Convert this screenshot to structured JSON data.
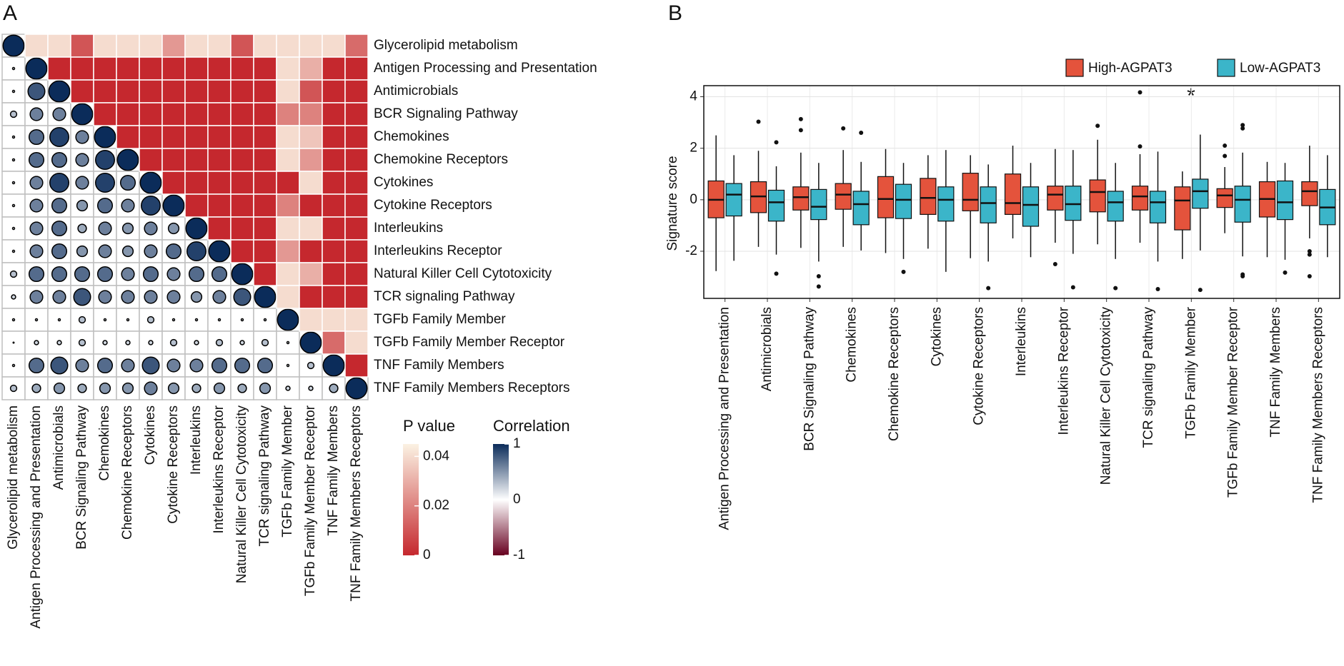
{
  "chart_data": [
    {
      "type": "corrplot",
      "panel": "A",
      "labels": [
        "Glycerolipid metabolism",
        "Antigen Processing and Presentation",
        "Antimicrobials",
        "BCR Signaling Pathway",
        "Chemokines",
        "Chemokine Receptors",
        "Cytokines",
        "Cytokine Receptors",
        "Interleukins",
        "Interleukins Receptor",
        "Natural Killer Cell Cytotoxicity",
        "TCR signaling Pathway",
        "TGFb Family Member",
        "TGFb Family Member Receptor",
        "TNF Family Members",
        "TNF Family Members Receptors"
      ],
      "correlation": [
        [
          1
        ],
        [
          0.1,
          1
        ],
        [
          0.1,
          0.8,
          1
        ],
        [
          0.3,
          0.6,
          0.6,
          1
        ],
        [
          0.1,
          0.7,
          0.9,
          0.6,
          1
        ],
        [
          0.1,
          0.7,
          0.7,
          0.6,
          0.9,
          1
        ],
        [
          0.1,
          0.6,
          0.9,
          0.6,
          0.9,
          0.7,
          1
        ],
        [
          0.1,
          0.6,
          0.7,
          0.5,
          0.7,
          0.6,
          0.9,
          1
        ],
        [
          0.1,
          0.6,
          0.7,
          0.4,
          0.6,
          0.5,
          0.6,
          0.5,
          1
        ],
        [
          0.1,
          0.6,
          0.7,
          0.5,
          0.6,
          0.5,
          0.6,
          0.7,
          0.9,
          1
        ],
        [
          0.3,
          0.7,
          0.7,
          0.7,
          0.7,
          0.6,
          0.7,
          0.6,
          0.7,
          0.7,
          1
        ],
        [
          0.2,
          0.6,
          0.6,
          0.8,
          0.6,
          0.6,
          0.6,
          0.6,
          0.5,
          0.6,
          0.8,
          1
        ],
        [
          0.1,
          0.1,
          0.1,
          0.3,
          0.1,
          0.1,
          0.3,
          0.1,
          0.1,
          0.1,
          0.1,
          0.1,
          1
        ],
        [
          0.05,
          0.2,
          0.2,
          0.3,
          0.2,
          0.2,
          0.2,
          0.3,
          0.2,
          0.3,
          0.2,
          0.3,
          0.1,
          1
        ],
        [
          0.1,
          0.7,
          0.8,
          0.6,
          0.7,
          0.6,
          0.8,
          0.6,
          0.6,
          0.7,
          0.7,
          0.7,
          0.1,
          0.3,
          1
        ],
        [
          0.3,
          0.4,
          0.5,
          0.4,
          0.5,
          0.5,
          0.6,
          0.5,
          0.4,
          0.5,
          0.4,
          0.5,
          0.2,
          0.2,
          0.4,
          1
        ]
      ],
      "p_values": [
        [
          0.04,
          0.04,
          0.01,
          0.04,
          0.04,
          0.04,
          0.025,
          0.04,
          0.04,
          0.01,
          0.04,
          0.04,
          0.04,
          0.04,
          0.015
        ],
        [
          0,
          0,
          0,
          0,
          0,
          0,
          0,
          0,
          0,
          0,
          0.04,
          0.03,
          0,
          0
        ],
        [
          0,
          0,
          0,
          0,
          0,
          0,
          0,
          0,
          0,
          0.04,
          0.01,
          0,
          0
        ],
        [
          0,
          0,
          0,
          0,
          0,
          0,
          0,
          0,
          0.02,
          0.02,
          0,
          0
        ],
        [
          0,
          0,
          0,
          0,
          0,
          0,
          0,
          0.04,
          0.035,
          0,
          0
        ],
        [
          0,
          0,
          0,
          0,
          0,
          0,
          0.04,
          0.025,
          0,
          0
        ],
        [
          0,
          0,
          0,
          0,
          0,
          0,
          0.04,
          0,
          0
        ],
        [
          0,
          0,
          0,
          0,
          0.02,
          0,
          0,
          0
        ],
        [
          0,
          0,
          0,
          0.04,
          0.04,
          0,
          0
        ],
        [
          0,
          0,
          0.025,
          0,
          0,
          0
        ],
        [
          0,
          0.04,
          0.03,
          0,
          0
        ],
        [
          0.04,
          0,
          0,
          0
        ],
        [
          0.04,
          0.04,
          0.04
        ],
        [
          0.015,
          0.04
        ],
        [
          0
        ]
      ],
      "p_title": "P value",
      "p_lim": [
        0,
        0.045
      ],
      "p_ticks": [
        0,
        0.02,
        0.04
      ],
      "p_colors": [
        "#c5282e",
        "#fbf2e3"
      ],
      "corr_title": "Correlation",
      "corr_lim": [
        -1,
        1
      ],
      "corr_ticks": [
        -1,
        0,
        1
      ],
      "corr_colors": [
        "#67001f",
        "#ffffff",
        "#0b2c5a"
      ]
    },
    {
      "type": "box",
      "panel": "B",
      "ylabel": "Signature score",
      "annotation": "*",
      "categories": [
        "Antigen Processing and Presentation",
        "Antimicrobials",
        "BCR Signaling Pathway",
        "Chemokines",
        "Chemokine Receptors",
        "Cytokines",
        "Cytokine Receptors",
        "Interleukins",
        "Interleukins Receptor",
        "Natural Killer Cell Cytotoxicity",
        "TCR signaling Pathway",
        "TGFb Family Member",
        "TGFb Family Member Receptor",
        "TNF Family Members",
        "TNF Family Members Receptors"
      ],
      "ylim": [
        -3.83,
        4.43
      ],
      "yticks": [
        -2,
        0,
        2,
        4
      ],
      "grid": true,
      "legend": "top-right",
      "series": [
        {
          "name": "High-AGPAT3",
          "color": "#e4533c",
          "boxes": [
            {
              "min": -2.77,
              "q1": -0.7,
              "median": 0,
              "q3": 0.73,
              "max": 2.5,
              "outliers": []
            },
            {
              "min": -1.83,
              "q1": -0.5,
              "median": 0.13,
              "q3": 0.7,
              "max": 1.9,
              "outliers": [
                3.03
              ]
            },
            {
              "min": -1.87,
              "q1": -0.4,
              "median": 0.1,
              "q3": 0.5,
              "max": 1.83,
              "outliers": [
                3.13,
                2.7
              ]
            },
            {
              "min": -1.83,
              "q1": -0.37,
              "median": 0.2,
              "q3": 0.63,
              "max": 1.93,
              "outliers": [
                2.77
              ]
            },
            {
              "min": -2.07,
              "q1": -0.7,
              "median": 0.03,
              "q3": 0.9,
              "max": 1.97,
              "outliers": []
            },
            {
              "min": -1.9,
              "q1": -0.57,
              "median": 0.07,
              "q3": 0.83,
              "max": 1.73,
              "outliers": []
            },
            {
              "min": -2.27,
              "q1": -0.43,
              "median": 0,
              "q3": 1.03,
              "max": 1.73,
              "outliers": []
            },
            {
              "min": -1.5,
              "q1": -0.57,
              "median": -0.13,
              "q3": 1.0,
              "max": 2.1,
              "outliers": []
            },
            {
              "min": -1.67,
              "q1": -0.4,
              "median": 0.2,
              "q3": 0.53,
              "max": 1.97,
              "outliers": [
                -2.5
              ]
            },
            {
              "min": -1.73,
              "q1": -0.47,
              "median": 0.3,
              "q3": 0.77,
              "max": 2.33,
              "outliers": [
                2.87
              ]
            },
            {
              "min": -1.67,
              "q1": -0.4,
              "median": 0.13,
              "q3": 0.53,
              "max": 1.77,
              "outliers": [
                4.17,
                2.07
              ]
            },
            {
              "min": -2.3,
              "q1": -1.17,
              "median": -0.03,
              "q3": 0.5,
              "max": 1.1,
              "outliers": []
            },
            {
              "min": -1.3,
              "q1": -0.3,
              "median": 0.17,
              "q3": 0.43,
              "max": 1.27,
              "outliers": [
                2.1,
                1.7
              ]
            },
            {
              "min": -2.23,
              "q1": -0.67,
              "median": 0.03,
              "q3": 0.7,
              "max": 1.47,
              "outliers": []
            },
            {
              "min": -1.5,
              "q1": -0.23,
              "median": 0.33,
              "q3": 0.7,
              "max": 2.1,
              "outliers": [
                -2.0,
                -2.13,
                -2.97
              ]
            }
          ]
        },
        {
          "name": "Low-AGPAT3",
          "color": "#3bb5c9",
          "boxes": [
            {
              "min": -2.37,
              "q1": -0.63,
              "median": 0.2,
              "q3": 0.63,
              "max": 1.73,
              "outliers": []
            },
            {
              "min": -2.13,
              "q1": -0.83,
              "median": -0.1,
              "q3": 0.37,
              "max": 1.3,
              "outliers": [
                2.23,
                -2.87
              ]
            },
            {
              "min": -2.4,
              "q1": -0.77,
              "median": -0.27,
              "q3": 0.4,
              "max": 1.43,
              "outliers": [
                -2.97,
                -3.37
              ]
            },
            {
              "min": -1.97,
              "q1": -0.97,
              "median": -0.17,
              "q3": 0.33,
              "max": 1.47,
              "outliers": [
                2.6
              ]
            },
            {
              "min": -2.3,
              "q1": -0.73,
              "median": 0,
              "q3": 0.6,
              "max": 1.43,
              "outliers": [
                -2.8
              ]
            },
            {
              "min": -2.8,
              "q1": -0.83,
              "median": 0,
              "q3": 0.5,
              "max": 1.93,
              "outliers": []
            },
            {
              "min": -2.4,
              "q1": -0.9,
              "median": -0.13,
              "q3": 0.5,
              "max": 1.37,
              "outliers": [
                -3.43
              ]
            },
            {
              "min": -2.23,
              "q1": -1.03,
              "median": -0.2,
              "q3": 0.5,
              "max": 1.43,
              "outliers": []
            },
            {
              "min": -2.1,
              "q1": -0.8,
              "median": -0.17,
              "q3": 0.53,
              "max": 1.93,
              "outliers": [
                -3.4
              ]
            },
            {
              "min": -2.3,
              "q1": -0.83,
              "median": -0.1,
              "q3": 0.33,
              "max": 1.43,
              "outliers": [
                -3.43
              ]
            },
            {
              "min": -2.4,
              "q1": -0.9,
              "median": -0.1,
              "q3": 0.33,
              "max": 1.87,
              "outliers": [
                -3.47
              ]
            },
            {
              "min": -1.97,
              "q1": -0.33,
              "median": 0.33,
              "q3": 0.8,
              "max": 2.53,
              "outliers": [
                -3.5
              ]
            },
            {
              "min": -2.2,
              "q1": -0.87,
              "median": 0,
              "q3": 0.53,
              "max": 1.83,
              "outliers": [
                2.9,
                2.77,
                -2.9,
                -2.97
              ]
            },
            {
              "min": -2.33,
              "q1": -0.77,
              "median": -0.1,
              "q3": 0.73,
              "max": 1.43,
              "outliers": [
                -2.83
              ]
            },
            {
              "min": -2.23,
              "q1": -0.97,
              "median": -0.3,
              "q3": 0.4,
              "max": 1.73,
              "outliers": []
            }
          ]
        }
      ]
    }
  ]
}
